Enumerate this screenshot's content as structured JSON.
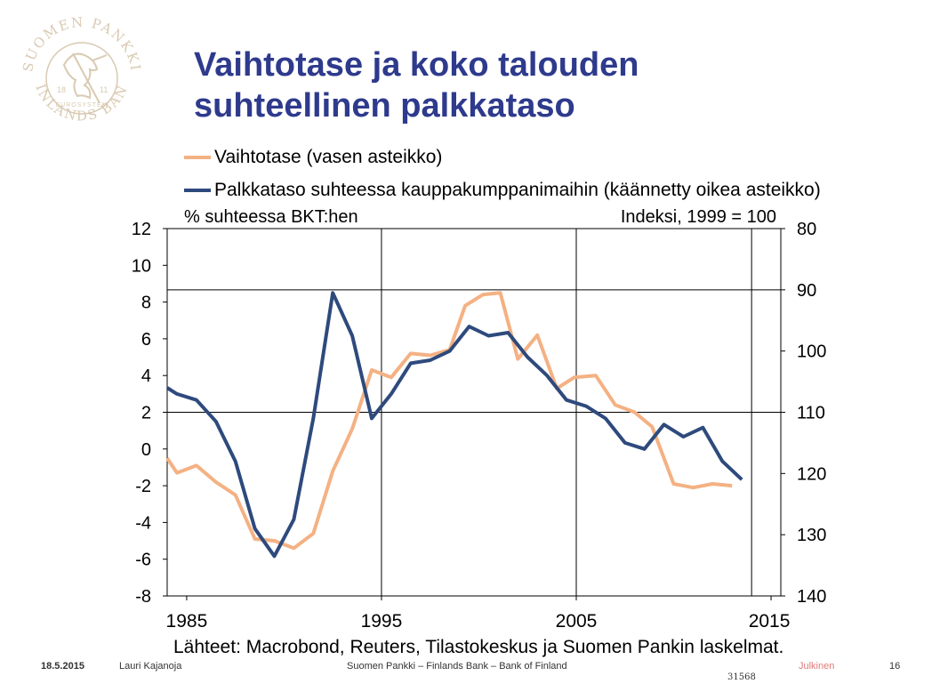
{
  "slide": {
    "title_line1": "Vaihtotase ja koko talouden",
    "title_line2": "suhteellinen palkkataso",
    "title_color": "#2E3A8C",
    "logo_text_top": "SUOMEN PANKKI",
    "logo_text_bottom": "FINLANDS BANK",
    "logo_year_left": "18",
    "logo_year_right": "11",
    "logo_eurosystem": "EUROSYSTEM",
    "logo_color": "#d9cab2",
    "sources": "Lähteet: Macrobond, Reuters, Tilastokeskus ja Suomen Pankin laskelmat."
  },
  "footer": {
    "date": "18.5.2015",
    "author": "Lauri Kajanoja",
    "org": "Suomen Pankki – Finlands Bank – Bank of Finland",
    "classification": "Julkinen",
    "classification_color": "#e07a7a",
    "page": "16",
    "code": "31568"
  },
  "chart_data": {
    "type": "line",
    "left_axis_label": "% suhteessa BKT:hen",
    "right_axis_label": "Indeksi, 1999 = 100",
    "xlim": [
      1984,
      2015.5
    ],
    "left_ylim": [
      -8,
      12
    ],
    "right_ylim": [
      140,
      80
    ],
    "right_inverted": true,
    "left_ticks": [
      12,
      10,
      8,
      6,
      4,
      2,
      0,
      -2,
      -4,
      -6,
      -8
    ],
    "right_ticks": [
      80,
      90,
      100,
      110,
      120,
      130,
      140
    ],
    "x_ticks": [
      1985,
      1995,
      2005,
      2015
    ],
    "x_ticks_minor_extra": [
      2014
    ],
    "grid": "vertical at 1995 and 2005, horizontal at right-axis 90 and 110",
    "series": [
      {
        "name": "Vaihtotase (vasen asteikko)",
        "axis": "left",
        "color": "#f4b183",
        "x": [
          1984,
          1984.5,
          1985.5,
          1986.5,
          1987.5,
          1988.5,
          1989.5,
          1990.5,
          1991.5,
          1992.5,
          1993.5,
          1994.5,
          1995.5,
          1996.5,
          1997.5,
          1998.5,
          1999.3,
          2000.2,
          2001.1,
          2002.0,
          2003.0,
          2004.0,
          2004.9,
          2006.0,
          2007.0,
          2008.0,
          2008.9,
          2010.0,
          2011.0,
          2012.0,
          2013.0
        ],
        "values": [
          -0.5,
          -1.3,
          -0.9,
          -1.8,
          -2.5,
          -4.9,
          -5.0,
          -5.4,
          -4.6,
          -1.2,
          1.1,
          4.3,
          3.9,
          5.2,
          5.1,
          5.4,
          7.8,
          8.4,
          8.5,
          4.9,
          6.2,
          3.3,
          3.9,
          4.0,
          2.4,
          2.0,
          1.2,
          -1.9,
          -2.1,
          -1.9,
          -2.0
        ]
      },
      {
        "name": "Palkkataso suhteessa kauppakumppanimaihin (käännetty oikea asteikko)",
        "axis": "right",
        "color": "#2e4a7d",
        "x": [
          1984,
          1984.5,
          1985.5,
          1986.5,
          1987.5,
          1988.5,
          1989.5,
          1990.5,
          1991.5,
          1992.5,
          1993.5,
          1994.5,
          1995.5,
          1996.5,
          1997.5,
          1998.5,
          1999.5,
          2000.5,
          2001.5,
          2002.5,
          2003.5,
          2004.5,
          2005.5,
          2006.5,
          2007.5,
          2008.5,
          2009.5,
          2010.5,
          2011.5,
          2012.5,
          2013.5
        ],
        "values": [
          106,
          107,
          108,
          111.5,
          118,
          129,
          133.5,
          127.5,
          111,
          90.5,
          97.5,
          111,
          107,
          102,
          101.5,
          100,
          96,
          97.5,
          97,
          101,
          104,
          108,
          109,
          111,
          115,
          116,
          112,
          114,
          112.5,
          118,
          121
        ]
      }
    ]
  }
}
